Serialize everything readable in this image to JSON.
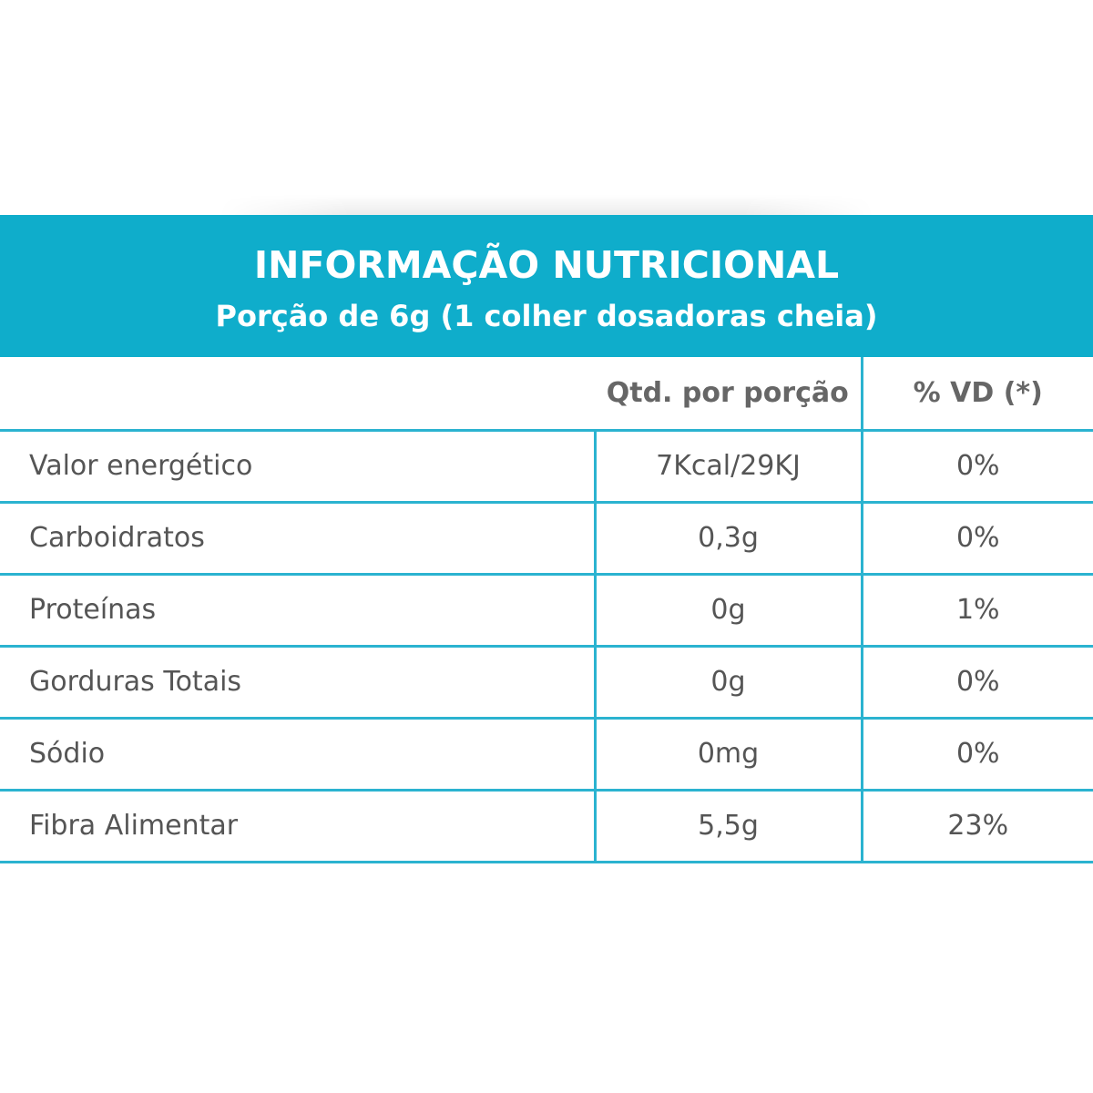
{
  "label": {
    "title": "INFORMAÇÃO NUTRICIONAL",
    "serving": "Porção de 6g (1  colher dosadoras  cheia)"
  },
  "table": {
    "columns": [
      "",
      "Qtd. por porção",
      "% VD (*)"
    ],
    "rows": [
      {
        "name": "Valor energético",
        "qty": "7Kcal/29KJ",
        "vd": "0%"
      },
      {
        "name": "Carboidratos",
        "qty": "0,3g",
        "vd": "0%"
      },
      {
        "name": "Proteínas",
        "qty": "0g",
        "vd": "1%"
      },
      {
        "name": "Gorduras Totais",
        "qty": "0g",
        "vd": "0%"
      },
      {
        "name": "Sódio",
        "qty": "0mg",
        "vd": "0%"
      },
      {
        "name": "Fibra Alimentar",
        "qty": "5,5g",
        "vd": "23%"
      }
    ]
  },
  "colors": {
    "header_band": "#0fadcb",
    "grid_line": "#2bb3d0",
    "text": "#555555"
  }
}
